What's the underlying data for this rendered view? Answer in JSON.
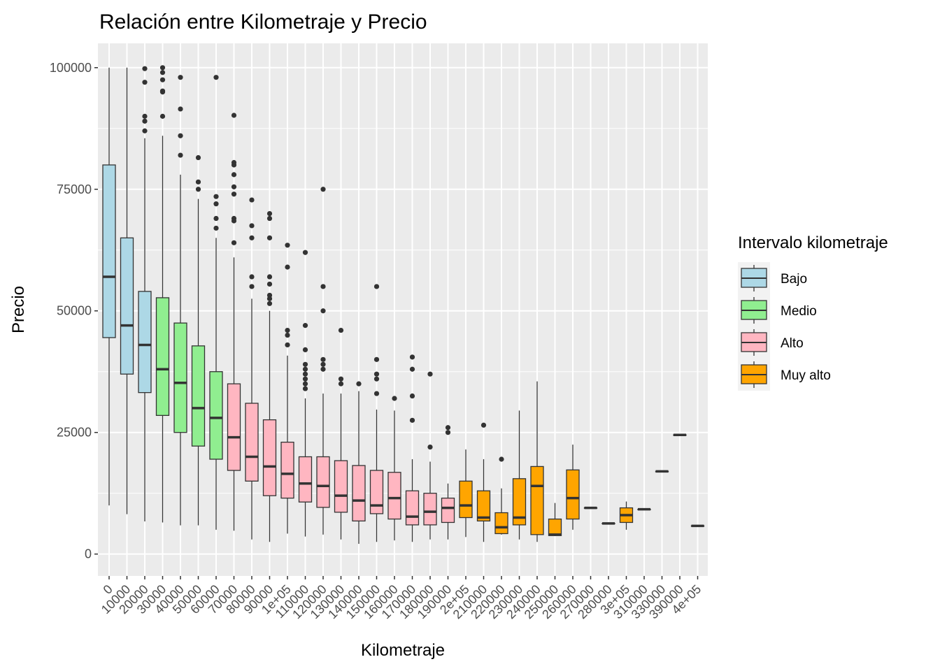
{
  "chart_data": {
    "type": "boxplot",
    "title": "Relación entre Kilometraje y Precio",
    "xlabel": "Kilometraje",
    "ylabel": "Precio",
    "ylim": [
      -4500,
      105000
    ],
    "y_ticks": [
      0,
      25000,
      50000,
      75000,
      100000
    ],
    "y_tick_labels": [
      "0",
      "25000",
      "50000",
      "75000",
      "100000"
    ],
    "grid": true,
    "legend": {
      "title": "Intervalo kilometraje",
      "placement": "right",
      "items": [
        {
          "key": "Bajo",
          "label": "Bajo",
          "color": "#ADD8E6"
        },
        {
          "key": "Medio",
          "label": "Medio",
          "color": "#90EE90"
        },
        {
          "key": "Alto",
          "label": "Alto",
          "color": "#FFB6C1"
        },
        {
          "key": "Muy alto",
          "label": "Muy alto",
          "color": "#FFA500"
        }
      ]
    },
    "boxes": [
      {
        "label": "0",
        "group": "Bajo",
        "min": 10000,
        "q1": 44500,
        "median": 57000,
        "q3": 80000,
        "max": 100000,
        "outliers": []
      },
      {
        "label": "10000",
        "group": "Bajo",
        "min": 8200,
        "q1": 37000,
        "median": 47000,
        "q3": 65000,
        "max": 100000,
        "outliers": []
      },
      {
        "label": "20000",
        "group": "Bajo",
        "min": 6700,
        "q1": 33200,
        "median": 43000,
        "q3": 54000,
        "max": 85500,
        "outliers": [
          87000,
          89000,
          90000,
          97000,
          99800
        ]
      },
      {
        "label": "30000",
        "group": "Medio",
        "min": 6500,
        "q1": 28500,
        "median": 38000,
        "q3": 52700,
        "max": 86000,
        "outliers": [
          90000,
          95000,
          95200,
          97500,
          99000,
          100000
        ]
      },
      {
        "label": "40000",
        "group": "Medio",
        "min": 5900,
        "q1": 25000,
        "median": 35200,
        "q3": 47500,
        "max": 78000,
        "outliers": [
          82000,
          86000,
          91500,
          98000
        ]
      },
      {
        "label": "50000",
        "group": "Medio",
        "min": 5900,
        "q1": 22200,
        "median": 30000,
        "q3": 42800,
        "max": 73000,
        "outliers": [
          75000,
          76500,
          81500
        ]
      },
      {
        "label": "60000",
        "group": "Medio",
        "min": 5000,
        "q1": 19500,
        "median": 28000,
        "q3": 37500,
        "max": 65000,
        "outliers": [
          67000,
          69000,
          72000,
          73500,
          98000
        ]
      },
      {
        "label": "70000",
        "group": "Alto",
        "min": 4800,
        "q1": 17200,
        "median": 24000,
        "q3": 35000,
        "max": 61000,
        "outliers": [
          64000,
          68500,
          69000,
          74000,
          75500,
          78000,
          80000,
          80500,
          90200
        ]
      },
      {
        "label": "80000",
        "group": "Alto",
        "min": 3000,
        "q1": 15000,
        "median": 20000,
        "q3": 31000,
        "max": 52500,
        "outliers": [
          55000,
          57000,
          65000,
          67500,
          72800
        ]
      },
      {
        "label": "90000",
        "group": "Alto",
        "min": 2500,
        "q1": 12000,
        "median": 18000,
        "q3": 27600,
        "max": 50000,
        "outliers": [
          51500,
          52500,
          53200,
          55500,
          57000,
          65000,
          69000,
          70000
        ]
      },
      {
        "label": "1e+05",
        "group": "Alto",
        "min": 4200,
        "q1": 11500,
        "median": 16500,
        "q3": 23000,
        "max": 40800,
        "outliers": [
          43000,
          45000,
          46000,
          59000,
          63500
        ]
      },
      {
        "label": "110000",
        "group": "Alto",
        "min": 3600,
        "q1": 10700,
        "median": 14500,
        "q3": 20000,
        "max": 32000,
        "outliers": [
          34000,
          35000,
          36000,
          37000,
          38000,
          39000,
          42000,
          47000,
          62000
        ]
      },
      {
        "label": "120000",
        "group": "Alto",
        "min": 4000,
        "q1": 9600,
        "median": 14000,
        "q3": 20000,
        "max": 33000,
        "outliers": [
          38000,
          39000,
          40000,
          50000,
          55000,
          75000
        ]
      },
      {
        "label": "130000",
        "group": "Alto",
        "min": 3000,
        "q1": 8600,
        "median": 12000,
        "q3": 19200,
        "max": 33000,
        "outliers": [
          35000,
          36000,
          46000
        ]
      },
      {
        "label": "140000",
        "group": "Alto",
        "min": 2100,
        "q1": 6800,
        "median": 11000,
        "q3": 18200,
        "max": 33500,
        "outliers": [
          35000
        ]
      },
      {
        "label": "150000",
        "group": "Alto",
        "min": 2500,
        "q1": 8300,
        "median": 10000,
        "q3": 17200,
        "max": 29700,
        "outliers": [
          33000,
          36000,
          37000,
          40000,
          55000
        ]
      },
      {
        "label": "160000",
        "group": "Alto",
        "min": 2800,
        "q1": 7200,
        "median": 11500,
        "q3": 16800,
        "max": 29500,
        "outliers": [
          32000
        ]
      },
      {
        "label": "170000",
        "group": "Alto",
        "min": 2500,
        "q1": 6000,
        "median": 7700,
        "q3": 13000,
        "max": 19500,
        "outliers": [
          27500,
          32500,
          38000,
          40500
        ]
      },
      {
        "label": "180000",
        "group": "Alto",
        "min": 3000,
        "q1": 6000,
        "median": 8700,
        "q3": 12500,
        "max": 19000,
        "outliers": [
          22000,
          37000
        ]
      },
      {
        "label": "190000",
        "group": "Alto",
        "min": 3000,
        "q1": 6500,
        "median": 9500,
        "q3": 11500,
        "max": 14500,
        "outliers": [
          25000,
          26000
        ]
      },
      {
        "label": "2e+05",
        "group": "Muy alto",
        "min": 3500,
        "q1": 7500,
        "median": 10000,
        "q3": 15000,
        "max": 21500,
        "outliers": []
      },
      {
        "label": "210000",
        "group": "Muy alto",
        "min": 2500,
        "q1": 6800,
        "median": 7500,
        "q3": 13000,
        "max": 19500,
        "outliers": [
          26500
        ]
      },
      {
        "label": "220000",
        "group": "Muy alto",
        "min": 4000,
        "q1": 4200,
        "median": 5500,
        "q3": 8500,
        "max": 13500,
        "outliers": [
          19500
        ]
      },
      {
        "label": "230000",
        "group": "Muy alto",
        "min": 3000,
        "q1": 6000,
        "median": 7500,
        "q3": 15500,
        "max": 29500,
        "outliers": []
      },
      {
        "label": "240000",
        "group": "Muy alto",
        "min": 2500,
        "q1": 4000,
        "median": 14000,
        "q3": 18000,
        "max": 35500,
        "outliers": []
      },
      {
        "label": "250000",
        "group": "Muy alto",
        "min": 3700,
        "q1": 3800,
        "median": 4000,
        "q3": 7200,
        "max": 10500,
        "outliers": []
      },
      {
        "label": "260000",
        "group": "Muy alto",
        "min": 5000,
        "q1": 7200,
        "median": 11500,
        "q3": 17300,
        "max": 22500,
        "outliers": []
      },
      {
        "label": "270000",
        "group": "Muy alto",
        "min": 9500,
        "q1": 9500,
        "median": 9500,
        "q3": 9500,
        "max": 9500,
        "outliers": []
      },
      {
        "label": "280000",
        "group": "Muy alto",
        "min": 6300,
        "q1": 6300,
        "median": 6300,
        "q3": 6300,
        "max": 6300,
        "outliers": []
      },
      {
        "label": "3e+05",
        "group": "Muy alto",
        "min": 5000,
        "q1": 6500,
        "median": 8000,
        "q3": 9500,
        "max": 10800,
        "outliers": []
      },
      {
        "label": "310000",
        "group": "Muy alto",
        "min": 9200,
        "q1": 9200,
        "median": 9200,
        "q3": 9200,
        "max": 9200,
        "outliers": []
      },
      {
        "label": "330000",
        "group": "Muy alto",
        "min": 17000,
        "q1": 17000,
        "median": 17000,
        "q3": 17000,
        "max": 17000,
        "outliers": []
      },
      {
        "label": "390000",
        "group": "Muy alto",
        "min": 24500,
        "q1": 24500,
        "median": 24500,
        "q3": 24500,
        "max": 24500,
        "outliers": []
      },
      {
        "label": "4e+05",
        "group": "Muy alto",
        "min": 5800,
        "q1": 5800,
        "median": 5800,
        "q3": 5800,
        "max": 5800,
        "outliers": []
      }
    ]
  }
}
